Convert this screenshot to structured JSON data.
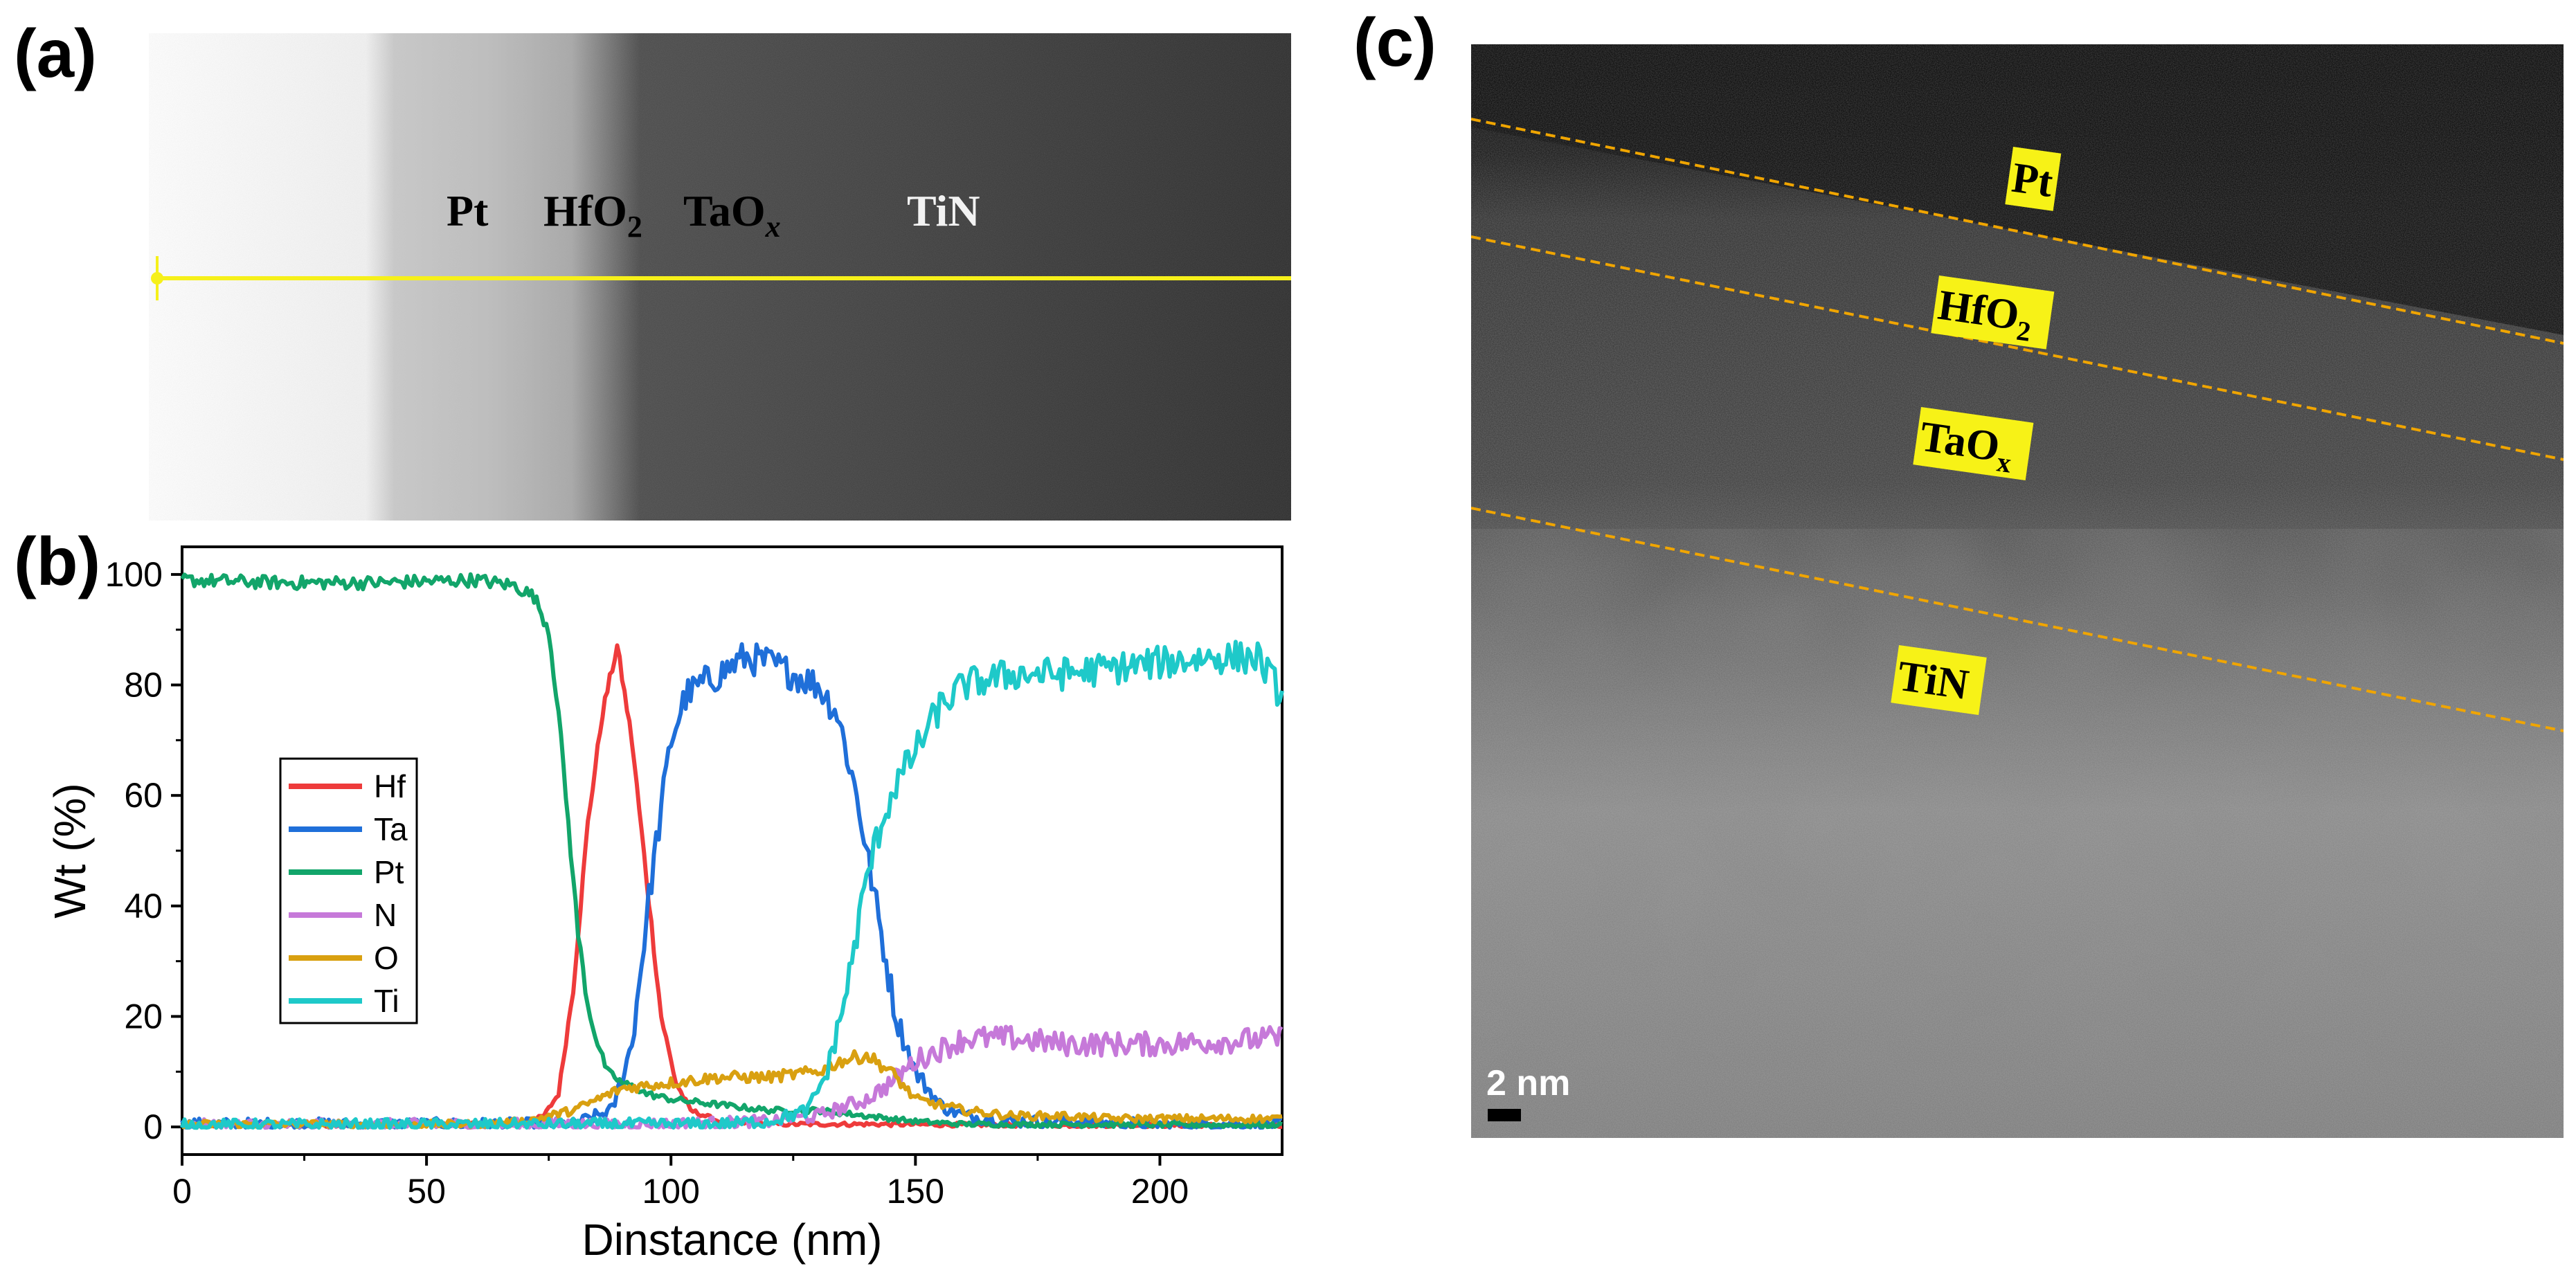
{
  "panels": {
    "a": {
      "label": "(a)",
      "layers": [
        "Pt",
        "HfO",
        "2",
        "TaO",
        "x",
        "TiN"
      ]
    },
    "b": {
      "label": "(b)"
    },
    "c": {
      "label": "(c)",
      "layer_labels": [
        {
          "name": "Pt",
          "main": "Pt",
          "sub": ""
        },
        {
          "name": "HfO2",
          "main": "HfO",
          "sub": "2"
        },
        {
          "name": "TaOx",
          "main": "TaO",
          "sub": "x"
        },
        {
          "name": "TiN",
          "main": "TiN",
          "sub": ""
        }
      ],
      "scale_bar": "2 nm"
    }
  },
  "colors": {
    "Hf": "#ee3b3b",
    "Ta": "#1f6fd9",
    "Pt": "#12a56a",
    "N": "#c679d9",
    "O": "#d9a010",
    "Ti": "#1ec9c9",
    "line_a": "#f6f01a",
    "label_bg": "#f7f217",
    "dashed": "#f0a500"
  },
  "chart_data": {
    "type": "line",
    "title": "",
    "xlabel": "Dinstance (nm)",
    "ylabel": "Wt (%)",
    "xlim": [
      0,
      225
    ],
    "ylim": [
      -5,
      105
    ],
    "xticks": [
      0,
      50,
      100,
      150,
      200
    ],
    "yticks": [
      0,
      20,
      40,
      60,
      80,
      100
    ],
    "xtick_labels": [
      "0",
      "50",
      "100",
      "150",
      "200"
    ],
    "ytick_labels": [
      "0",
      "20",
      "40",
      "60",
      "80",
      "100"
    ],
    "legend": [
      "Hf",
      "Ta",
      "Pt",
      "N",
      "O",
      "Ti"
    ],
    "legend_position": "left-center",
    "series": [
      {
        "name": "Hf",
        "x": [
          0,
          70,
          74,
          77,
          80,
          83,
          86,
          89,
          92,
          95,
          98,
          101,
          104,
          110,
          120,
          140,
          160,
          180,
          200,
          225
        ],
        "y": [
          0.3,
          0.5,
          2,
          6,
          25,
          55,
          75,
          87,
          70,
          45,
          20,
          8,
          3,
          1,
          0.5,
          0.5,
          0.4,
          0.3,
          0.3,
          0.3
        ]
      },
      {
        "name": "Ta",
        "x": [
          0,
          80,
          88,
          92,
          96,
          100,
          103,
          106,
          110,
          115,
          120,
          125,
          130,
          134,
          138,
          142,
          146,
          150,
          155,
          160,
          170,
          180,
          200,
          225
        ],
        "y": [
          0.5,
          0.5,
          3,
          15,
          45,
          70,
          78,
          80,
          82,
          85,
          84,
          82,
          80,
          75,
          60,
          40,
          20,
          10,
          4,
          2,
          1,
          1,
          0.5,
          0.5
        ],
        "noise": 3
      },
      {
        "name": "Pt",
        "x": [
          0,
          20,
          40,
          60,
          68,
          72,
          75,
          77,
          79,
          81,
          83,
          85,
          87,
          90,
          93,
          95,
          100,
          110,
          120,
          130,
          140,
          150,
          160,
          225
        ],
        "y": [
          99,
          98.5,
          98.5,
          99,
          98,
          96,
          90,
          75,
          55,
          35,
          22,
          15,
          10,
          8,
          7,
          6,
          5,
          4,
          3,
          3,
          2,
          1,
          0.5,
          0.3
        ],
        "noise": 1.2
      },
      {
        "name": "N",
        "x": [
          0,
          100,
          120,
          130,
          140,
          145,
          150,
          155,
          160,
          170,
          180,
          200,
          225
        ],
        "y": [
          0.3,
          0.5,
          1,
          2,
          5,
          8,
          12,
          14,
          16,
          16,
          15,
          15,
          16
        ],
        "noise": 3
      },
      {
        "name": "O",
        "x": [
          0,
          60,
          70,
          80,
          90,
          100,
          110,
          120,
          130,
          135,
          140,
          145,
          150,
          160,
          170,
          180,
          190,
          200,
          225
        ],
        "y": [
          0.5,
          0.5,
          1,
          3,
          7,
          8,
          9,
          9,
          10,
          12,
          13,
          10,
          5,
          3,
          2,
          2,
          1.5,
          1.5,
          1.5
        ],
        "noise": 1.8
      },
      {
        "name": "Ti",
        "x": [
          0,
          110,
          120,
          128,
          132,
          136,
          140,
          143,
          146,
          150,
          155,
          160,
          170,
          180,
          190,
          200,
          210,
          220,
          225
        ],
        "y": [
          0.3,
          0.5,
          1,
          3,
          10,
          25,
          45,
          55,
          62,
          68,
          76,
          80,
          82,
          82,
          83,
          84,
          85,
          85,
          78
        ],
        "noise": 3
      }
    ]
  }
}
